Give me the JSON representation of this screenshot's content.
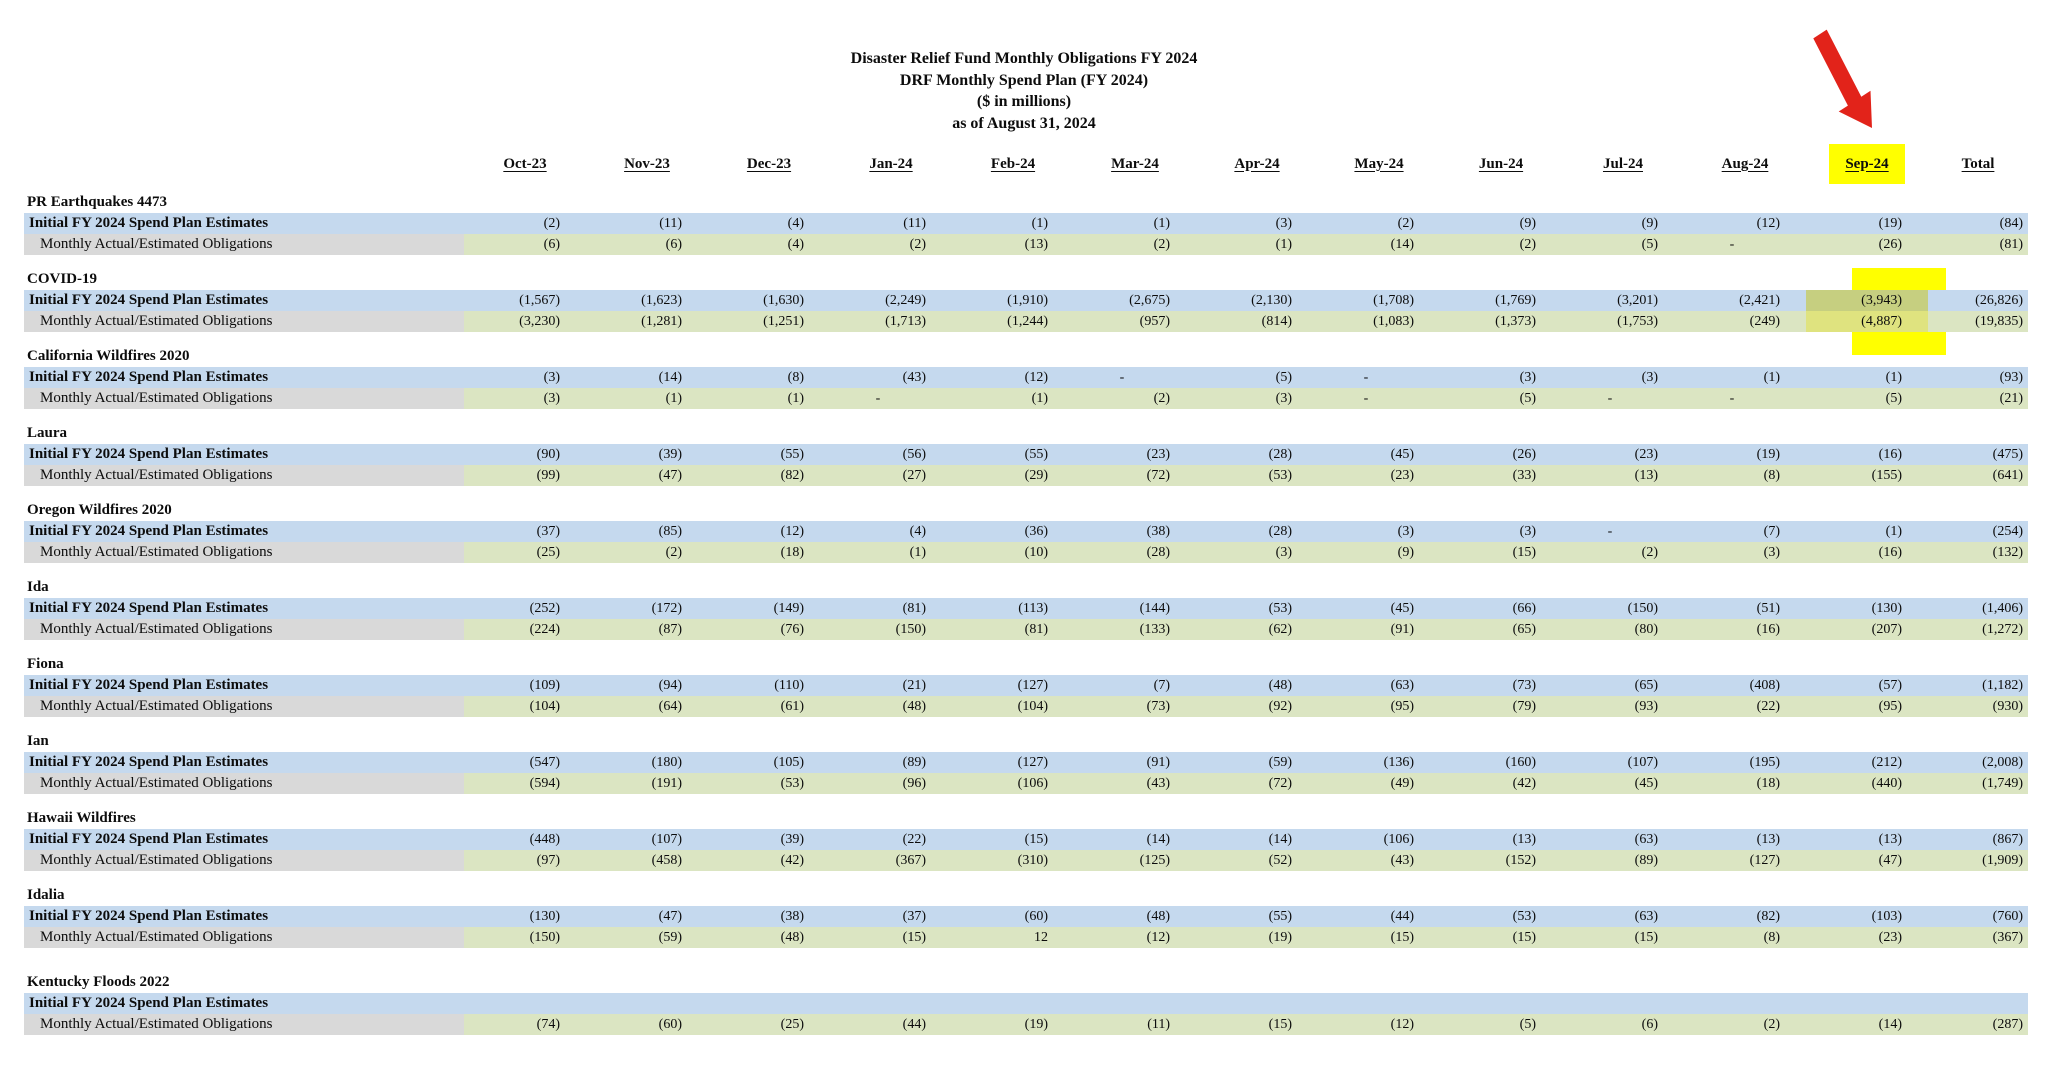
{
  "document": {
    "title_lines": [
      "Disaster Relief Fund Monthly Obligations FY 2024",
      "DRF Monthly Spend Plan (FY 2024)",
      "($ in millions)",
      "as of August 31, 2024"
    ]
  },
  "table": {
    "columns": [
      "Oct-23",
      "Nov-23",
      "Dec-23",
      "Jan-24",
      "Feb-24",
      "Mar-24",
      "Apr-24",
      "May-24",
      "Jun-24",
      "Jul-24",
      "Aug-24",
      "Sep-24",
      "Total"
    ],
    "row_labels": {
      "initial": "Initial FY 2024 Spend Plan Estimates",
      "monthly": "Monthly Actual/Estimated Obligations"
    },
    "sections": [
      {
        "name": "PR Earthquakes 4473",
        "initial": [
          "(2)",
          "(11)",
          "(4)",
          "(11)",
          "(1)",
          "(1)",
          "(3)",
          "(2)",
          "(9)",
          "(9)",
          "(12)",
          "(19)",
          "(84)"
        ],
        "monthly": [
          "(6)",
          "(6)",
          "(4)",
          "(2)",
          "(13)",
          "(2)",
          "(1)",
          "(14)",
          "(2)",
          "(5)",
          "-",
          "(26)",
          "(81)"
        ]
      },
      {
        "name": "COVID-19",
        "initial": [
          "(1,567)",
          "(1,623)",
          "(1,630)",
          "(2,249)",
          "(1,910)",
          "(2,675)",
          "(2,130)",
          "(1,708)",
          "(1,769)",
          "(3,201)",
          "(2,421)",
          "(3,943)",
          "(26,826)"
        ],
        "monthly": [
          "(3,230)",
          "(1,281)",
          "(1,251)",
          "(1,713)",
          "(1,244)",
          "(957)",
          "(814)",
          "(1,083)",
          "(1,373)",
          "(1,753)",
          "(249)",
          "(4,887)",
          "(19,835)"
        ]
      },
      {
        "name": "California Wildfires 2020",
        "initial": [
          "(3)",
          "(14)",
          "(8)",
          "(43)",
          "(12)",
          "-",
          "(5)",
          "-",
          "(3)",
          "(3)",
          "(1)",
          "(1)",
          "(93)"
        ],
        "monthly": [
          "(3)",
          "(1)",
          "(1)",
          "-",
          "(1)",
          "(2)",
          "(3)",
          "-",
          "(5)",
          "-",
          "-",
          "(5)",
          "(21)"
        ]
      },
      {
        "name": "Laura",
        "initial": [
          "(90)",
          "(39)",
          "(55)",
          "(56)",
          "(55)",
          "(23)",
          "(28)",
          "(45)",
          "(26)",
          "(23)",
          "(19)",
          "(16)",
          "(475)"
        ],
        "monthly": [
          "(99)",
          "(47)",
          "(82)",
          "(27)",
          "(29)",
          "(72)",
          "(53)",
          "(23)",
          "(33)",
          "(13)",
          "(8)",
          "(155)",
          "(641)"
        ]
      },
      {
        "name": "Oregon Wildfires 2020",
        "initial": [
          "(37)",
          "(85)",
          "(12)",
          "(4)",
          "(36)",
          "(38)",
          "(28)",
          "(3)",
          "(3)",
          "-",
          "(7)",
          "(1)",
          "(254)"
        ],
        "monthly": [
          "(25)",
          "(2)",
          "(18)",
          "(1)",
          "(10)",
          "(28)",
          "(3)",
          "(9)",
          "(15)",
          "(2)",
          "(3)",
          "(16)",
          "(132)"
        ]
      },
      {
        "name": "Ida",
        "initial": [
          "(252)",
          "(172)",
          "(149)",
          "(81)",
          "(113)",
          "(144)",
          "(53)",
          "(45)",
          "(66)",
          "(150)",
          "(51)",
          "(130)",
          "(1,406)"
        ],
        "monthly": [
          "(224)",
          "(87)",
          "(76)",
          "(150)",
          "(81)",
          "(133)",
          "(62)",
          "(91)",
          "(65)",
          "(80)",
          "(16)",
          "(207)",
          "(1,272)"
        ]
      },
      {
        "name": "Fiona",
        "initial": [
          "(109)",
          "(94)",
          "(110)",
          "(21)",
          "(127)",
          "(7)",
          "(48)",
          "(63)",
          "(73)",
          "(65)",
          "(408)",
          "(57)",
          "(1,182)"
        ],
        "monthly": [
          "(104)",
          "(64)",
          "(61)",
          "(48)",
          "(104)",
          "(73)",
          "(92)",
          "(95)",
          "(79)",
          "(93)",
          "(22)",
          "(95)",
          "(930)"
        ]
      },
      {
        "name": "Ian",
        "initial": [
          "(547)",
          "(180)",
          "(105)",
          "(89)",
          "(127)",
          "(91)",
          "(59)",
          "(136)",
          "(160)",
          "(107)",
          "(195)",
          "(212)",
          "(2,008)"
        ],
        "monthly": [
          "(594)",
          "(191)",
          "(53)",
          "(96)",
          "(106)",
          "(43)",
          "(72)",
          "(49)",
          "(42)",
          "(45)",
          "(18)",
          "(440)",
          "(1,749)"
        ]
      },
      {
        "name": "Hawaii Wildfires",
        "initial": [
          "(448)",
          "(107)",
          "(39)",
          "(22)",
          "(15)",
          "(14)",
          "(14)",
          "(106)",
          "(13)",
          "(63)",
          "(13)",
          "(13)",
          "(867)"
        ],
        "monthly": [
          "(97)",
          "(458)",
          "(42)",
          "(367)",
          "(310)",
          "(125)",
          "(52)",
          "(43)",
          "(152)",
          "(89)",
          "(127)",
          "(47)",
          "(1,909)"
        ]
      },
      {
        "name": "Idalia",
        "initial": [
          "(130)",
          "(47)",
          "(38)",
          "(37)",
          "(60)",
          "(48)",
          "(55)",
          "(44)",
          "(53)",
          "(63)",
          "(82)",
          "(103)",
          "(760)"
        ],
        "monthly": [
          "(150)",
          "(59)",
          "(48)",
          "(15)",
          "12",
          "(12)",
          "(19)",
          "(15)",
          "(15)",
          "(15)",
          "(8)",
          "(23)",
          "(367)"
        ]
      },
      {
        "name": "Kentucky Floods 2022",
        "initial": [
          "",
          "",
          "",
          "",
          "",
          "",
          "",
          "",
          "",
          "",
          "",
          "",
          ""
        ],
        "monthly": [
          "(74)",
          "(60)",
          "(25)",
          "(44)",
          "(19)",
          "(11)",
          "(15)",
          "(12)",
          "(5)",
          "(6)",
          "(2)",
          "(14)",
          "(287)"
        ]
      }
    ]
  },
  "annotations": {
    "highlighted_column": "Sep-24",
    "highlighted_section": "COVID-19",
    "highlight_color": "#ffff00",
    "arrow_color": "#e2231a"
  },
  "colors": {
    "initial_row_fill": "#c5d9ee",
    "monthly_row_fill": "#dbe5c2",
    "monthly_label_fill": "#d9d9d9"
  }
}
